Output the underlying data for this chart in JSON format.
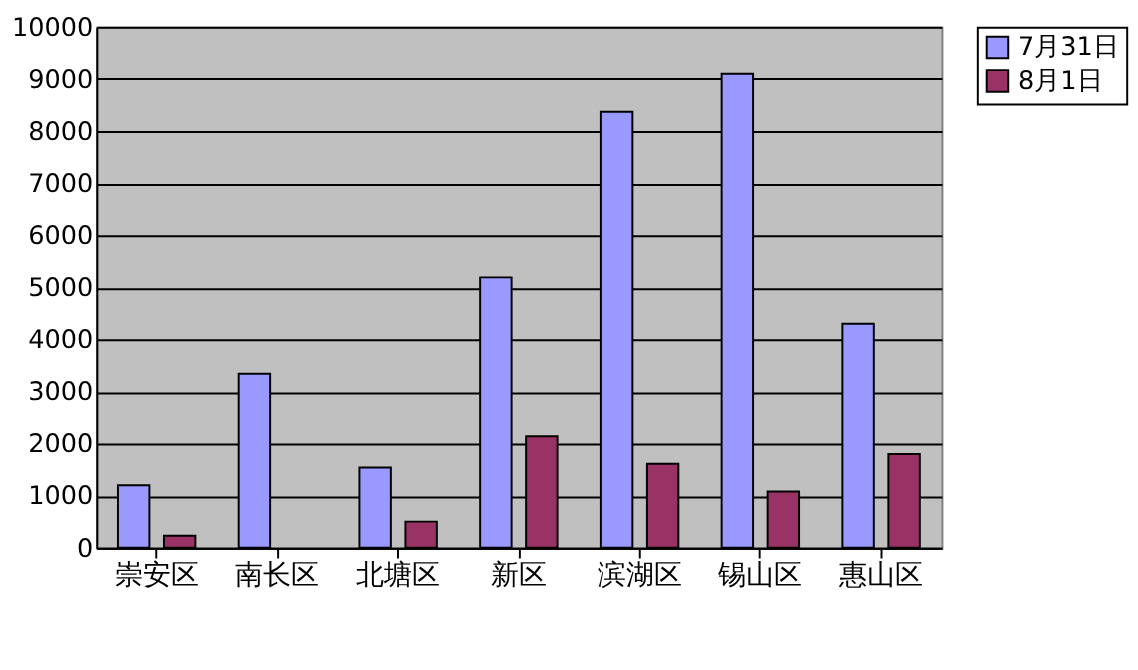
{
  "chart_data": {
    "type": "bar",
    "categories": [
      "崇安区",
      "南长区",
      "北塘区",
      "新区",
      "滨湖区",
      "锡山区",
      "惠山区"
    ],
    "series": [
      {
        "name": "7月31日",
        "color": "#9999ff",
        "values": [
          1200,
          3340,
          1540,
          5190,
          8370,
          9100,
          4300
        ]
      },
      {
        "name": "8月1日",
        "color": "#993366",
        "values": [
          230,
          null,
          500,
          2140,
          1610,
          1080,
          1800
        ]
      }
    ],
    "ylim": [
      0,
      10000
    ],
    "yticks": [
      0,
      1000,
      2000,
      3000,
      4000,
      5000,
      6000,
      7000,
      8000,
      9000,
      10000
    ],
    "grid": "y",
    "legend": "right"
  }
}
